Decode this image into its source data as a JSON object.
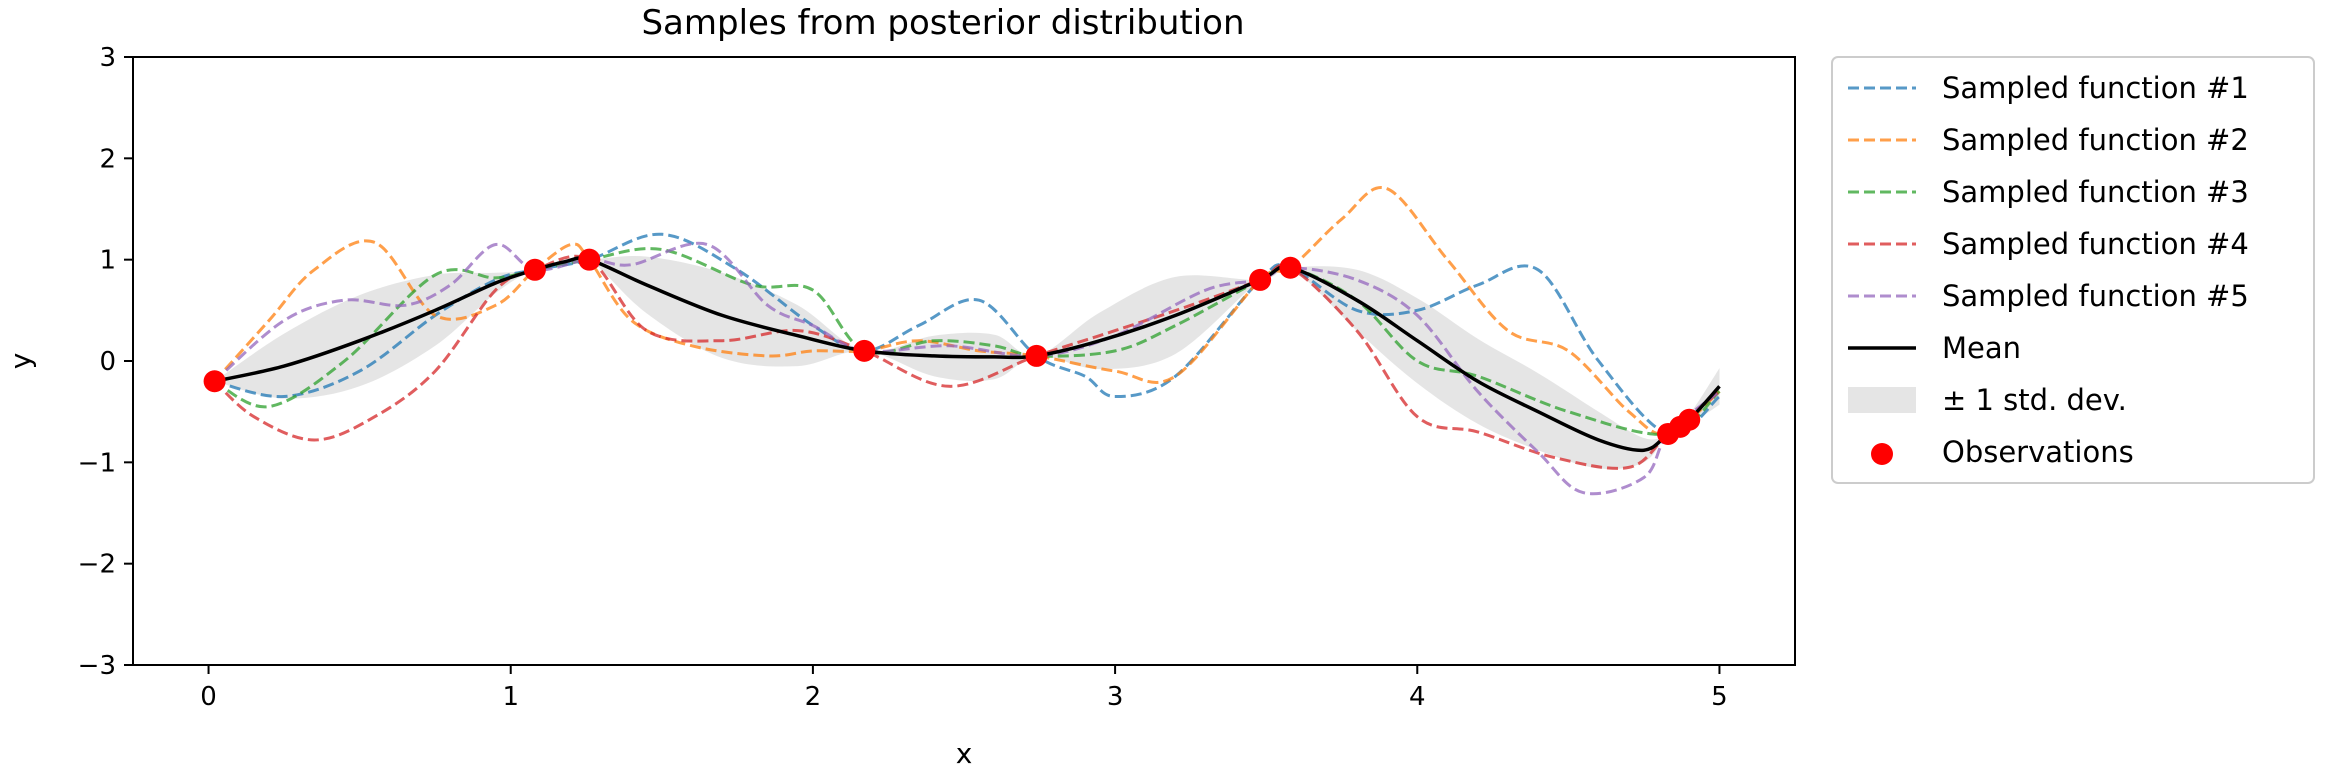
{
  "chart_data": {
    "type": "line",
    "title": "Samples from posterior distribution",
    "xlabel": "x",
    "ylabel": "y",
    "xlim": [
      -0.25,
      5.25
    ],
    "ylim": [
      -3,
      3
    ],
    "xticks": [
      "0",
      "1",
      "2",
      "3",
      "4",
      "5"
    ],
    "yticks": [
      "−3",
      "−2",
      "−1",
      "0",
      "1",
      "2",
      "3"
    ],
    "grid": false,
    "legend_position": "outside-right-top",
    "series": [
      {
        "name": "Sampled function #1",
        "style": "dashed",
        "color": "#1f77b4",
        "x": [
          0.02,
          0.25,
          0.5,
          0.75,
          0.95,
          1.08,
          1.26,
          1.5,
          1.75,
          2.0,
          2.17,
          2.35,
          2.55,
          2.74,
          2.9,
          3.0,
          3.2,
          3.48,
          3.58,
          3.8,
          4.0,
          4.2,
          4.4,
          4.6,
          4.83,
          5.0
        ],
        "y": [
          -0.2,
          -0.35,
          -0.1,
          0.45,
          0.8,
          0.9,
          1.0,
          1.25,
          0.9,
          0.35,
          0.1,
          0.35,
          0.6,
          0.05,
          -0.15,
          -0.35,
          -0.15,
          0.8,
          0.92,
          0.5,
          0.5,
          0.75,
          0.9,
          0.0,
          -0.72,
          -0.35
        ]
      },
      {
        "name": "Sampled function #2",
        "style": "dashed",
        "color": "#ff7f0e",
        "x": [
          0.02,
          0.2,
          0.35,
          0.55,
          0.75,
          0.95,
          1.08,
          1.2,
          1.26,
          1.4,
          1.6,
          1.85,
          2.0,
          2.17,
          2.35,
          2.55,
          2.74,
          3.0,
          3.2,
          3.48,
          3.58,
          3.75,
          3.9,
          4.1,
          4.3,
          4.5,
          4.7,
          4.83,
          5.0
        ],
        "y": [
          -0.2,
          0.4,
          0.9,
          1.17,
          0.45,
          0.55,
          0.9,
          1.15,
          1.0,
          0.4,
          0.15,
          0.05,
          0.1,
          0.1,
          0.2,
          0.1,
          0.05,
          -0.1,
          -0.15,
          0.8,
          0.92,
          1.4,
          1.7,
          1.0,
          0.3,
          0.1,
          -0.5,
          -0.72,
          -0.3
        ]
      },
      {
        "name": "Sampled function #3",
        "style": "dashed",
        "color": "#2ca02c",
        "x": [
          0.02,
          0.2,
          0.45,
          0.75,
          0.95,
          1.08,
          1.26,
          1.5,
          1.8,
          2.0,
          2.17,
          2.4,
          2.6,
          2.74,
          3.0,
          3.2,
          3.48,
          3.58,
          3.8,
          4.0,
          4.2,
          4.5,
          4.83,
          5.0
        ],
        "y": [
          -0.2,
          -0.45,
          0.0,
          0.85,
          0.82,
          0.9,
          1.0,
          1.1,
          0.75,
          0.7,
          0.1,
          0.2,
          0.15,
          0.05,
          0.1,
          0.35,
          0.8,
          0.92,
          0.6,
          0.0,
          -0.15,
          -0.5,
          -0.72,
          -0.3
        ]
      },
      {
        "name": "Sampled function #4",
        "style": "dashed",
        "color": "#d62728",
        "x": [
          0.02,
          0.15,
          0.35,
          0.55,
          0.75,
          0.95,
          1.08,
          1.26,
          1.45,
          1.7,
          1.95,
          2.17,
          2.45,
          2.74,
          3.0,
          3.25,
          3.48,
          3.58,
          3.8,
          4.0,
          4.2,
          4.45,
          4.7,
          4.83,
          5.0
        ],
        "y": [
          -0.2,
          -0.55,
          -0.78,
          -0.55,
          -0.1,
          0.7,
          0.9,
          1.0,
          0.3,
          0.2,
          0.3,
          0.1,
          -0.25,
          0.05,
          0.3,
          0.55,
          0.8,
          0.92,
          0.3,
          -0.55,
          -0.7,
          -0.95,
          -1.05,
          -0.72,
          -0.3
        ]
      },
      {
        "name": "Sampled function #5",
        "style": "dashed",
        "color": "#9467bd",
        "x": [
          0.02,
          0.25,
          0.45,
          0.65,
          0.8,
          0.95,
          1.08,
          1.26,
          1.4,
          1.65,
          1.85,
          2.0,
          2.17,
          2.45,
          2.74,
          3.0,
          3.3,
          3.48,
          3.58,
          3.8,
          4.0,
          4.2,
          4.4,
          4.55,
          4.75,
          4.83,
          5.0
        ],
        "y": [
          -0.2,
          0.4,
          0.6,
          0.55,
          0.75,
          1.15,
          0.9,
          1.0,
          0.95,
          1.15,
          0.55,
          0.35,
          0.1,
          0.15,
          0.05,
          0.25,
          0.7,
          0.8,
          0.92,
          0.8,
          0.45,
          -0.3,
          -0.9,
          -1.3,
          -1.15,
          -0.72,
          -0.3
        ]
      },
      {
        "name": "Mean",
        "style": "solid",
        "color": "#000000",
        "x": [
          0.02,
          0.25,
          0.5,
          0.75,
          0.95,
          1.08,
          1.18,
          1.26,
          1.45,
          1.7,
          1.95,
          2.17,
          2.4,
          2.6,
          2.74,
          2.95,
          3.2,
          3.48,
          3.58,
          3.8,
          4.0,
          4.2,
          4.4,
          4.6,
          4.75,
          4.83,
          4.9,
          5.0
        ],
        "y": [
          -0.2,
          -0.05,
          0.2,
          0.5,
          0.77,
          0.9,
          0.98,
          1.0,
          0.75,
          0.45,
          0.25,
          0.1,
          0.05,
          0.04,
          0.05,
          0.2,
          0.45,
          0.8,
          0.92,
          0.6,
          0.2,
          -0.2,
          -0.5,
          -0.78,
          -0.88,
          -0.72,
          -0.58,
          -0.25
        ]
      }
    ],
    "band": {
      "name": "± 1 std. dev.",
      "color": "#d3d3d3",
      "x": [
        0.02,
        0.25,
        0.5,
        0.75,
        0.95,
        1.08,
        1.18,
        1.26,
        1.45,
        1.7,
        1.95,
        2.17,
        2.4,
        2.6,
        2.74,
        2.95,
        3.2,
        3.48,
        3.58,
        3.8,
        4.0,
        4.2,
        4.4,
        4.6,
        4.75,
        4.83,
        4.9,
        5.0
      ],
      "sd": [
        0.0,
        0.32,
        0.45,
        0.35,
        0.1,
        0.0,
        0.03,
        0.0,
        0.28,
        0.42,
        0.3,
        0.0,
        0.2,
        0.22,
        0.0,
        0.28,
        0.38,
        0.0,
        0.0,
        0.3,
        0.42,
        0.42,
        0.38,
        0.28,
        0.12,
        0.0,
        0.05,
        0.18
      ]
    },
    "observations": {
      "name": "Observations",
      "color": "#ff0000",
      "x": [
        0.02,
        1.08,
        1.26,
        2.17,
        2.74,
        3.48,
        3.58,
        4.83,
        4.87,
        4.9
      ],
      "y": [
        -0.2,
        0.9,
        1.0,
        0.1,
        0.05,
        0.8,
        0.92,
        -0.72,
        -0.65,
        -0.58
      ]
    }
  }
}
